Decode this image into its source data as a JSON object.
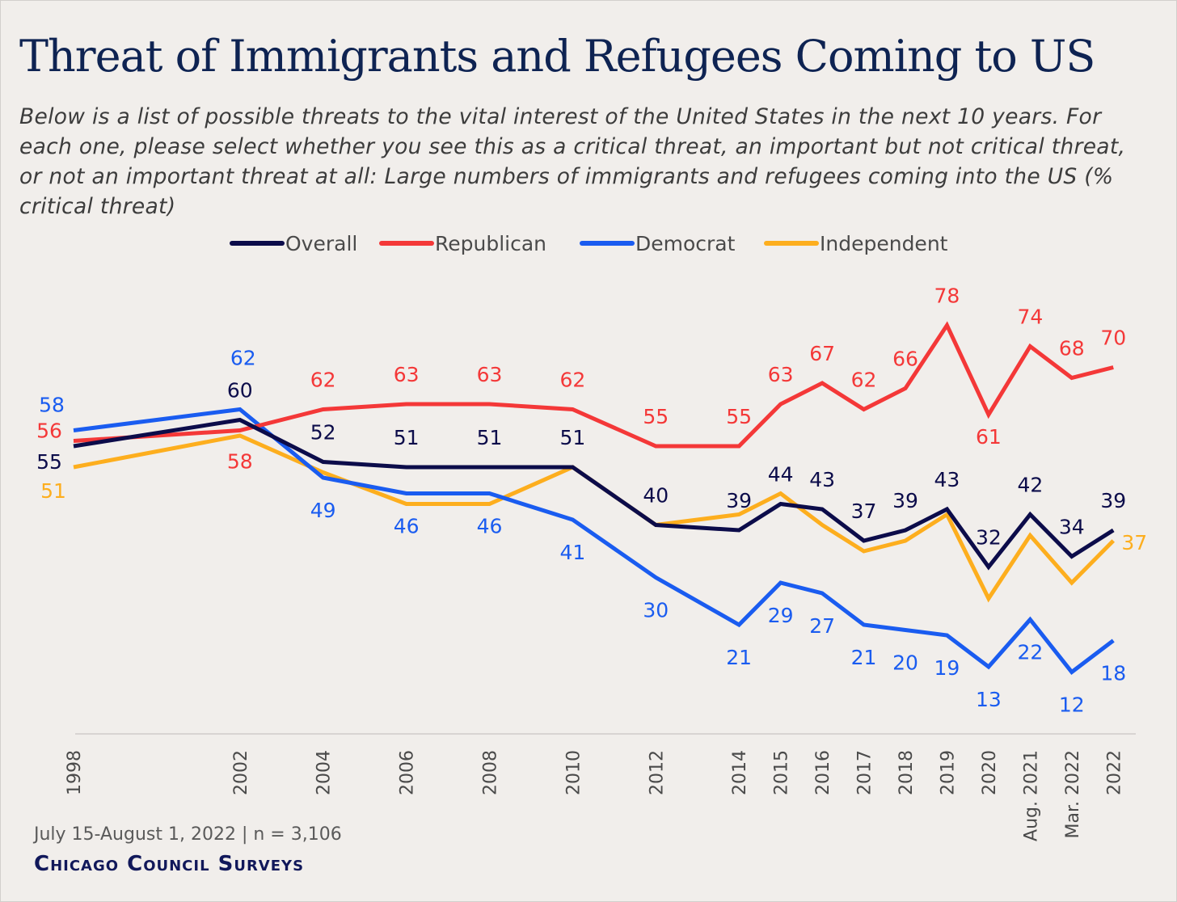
{
  "chart_data": {
    "type": "line",
    "title": "Threat of Immigrants and Refugees Coming to US",
    "subtitle": "Below is a list of possible threats to the vital interest of the United States in the next 10 years. For each one, please select whether you see this as a critical threat, an important but not critical threat, or not an important threat at all: Large numbers of immigrants and refugees coming into the US (% critical threat)",
    "categories": [
      "1998",
      "2002",
      "2004",
      "2006",
      "2008",
      "2010",
      "2012",
      "2014",
      "2015",
      "2016",
      "2017",
      "2018",
      "2019",
      "2020",
      "Aug. 2021",
      "Mar. 2022",
      "2022"
    ],
    "xlabel": "",
    "ylabel": "",
    "ylim": [
      0,
      100
    ],
    "grid": false,
    "legend_placement": "top-center",
    "series": [
      {
        "name": "Overall",
        "color": "#0c0c4a",
        "values": [
          55,
          60,
          52,
          51,
          51,
          51,
          40,
          39,
          44,
          43,
          37,
          39,
          43,
          32,
          42,
          34,
          39
        ],
        "labeled": [
          0,
          1,
          2,
          3,
          4,
          5,
          6,
          7,
          8,
          9,
          10,
          11,
          12,
          13,
          14,
          15,
          16
        ]
      },
      {
        "name": "Republican",
        "color": "#f43838",
        "values": [
          56,
          58,
          62,
          63,
          63,
          62,
          55,
          55,
          63,
          67,
          62,
          66,
          78,
          61,
          74,
          68,
          70
        ],
        "labeled": [
          0,
          1,
          2,
          3,
          4,
          5,
          6,
          7,
          8,
          9,
          10,
          11,
          12,
          13,
          14,
          15,
          16
        ]
      },
      {
        "name": "Democrat",
        "color": "#1a5cf0",
        "values": [
          58,
          62,
          49,
          46,
          46,
          41,
          30,
          21,
          29,
          27,
          21,
          20,
          19,
          13,
          22,
          12,
          18
        ],
        "labeled": [
          0,
          1,
          2,
          3,
          4,
          5,
          6,
          7,
          8,
          9,
          10,
          11,
          12,
          13,
          14,
          15,
          16
        ]
      },
      {
        "name": "Independent",
        "color": "#fdae1e",
        "values": [
          51,
          57,
          50,
          44,
          44,
          51,
          40,
          42,
          46,
          40,
          35,
          37,
          42,
          26,
          38,
          29,
          37
        ],
        "labeled": [
          0,
          16
        ]
      }
    ]
  },
  "footer": {
    "source": "July 15-August 1, 2022 | n = 3,106",
    "brand": "Chicago Council Surveys"
  }
}
